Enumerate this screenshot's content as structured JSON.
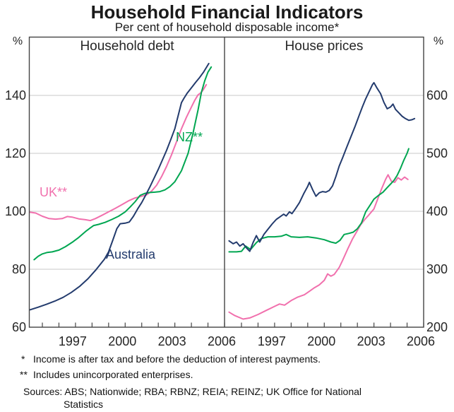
{
  "title": "Household Financial Indicators",
  "subtitle": "Per cent of household disposable income*",
  "colors": {
    "navy": "#233b6d",
    "pink": "#f170ad",
    "green": "#00a651",
    "grid": "#c9c9c9",
    "frame": "#444444"
  },
  "footnotes": {
    "fn1_marker": "*",
    "fn1_text": "Income is after tax and before the deduction of interest payments.",
    "fn2_marker": "**",
    "fn2_text": "Includes unincorporated enterprises.",
    "sources_line1": "Sources: ABS; Nationwide; RBA; RBNZ; REIA; REINZ; UK Office for National",
    "sources_line2": "Statistics"
  },
  "chart_data": [
    {
      "type": "line",
      "panel": "Household debt",
      "unit": "%",
      "axis_side": "left",
      "ylim": [
        60,
        160
      ],
      "y_ticks": [
        140,
        120,
        100,
        80,
        60
      ],
      "x_label_ticks": [
        1997,
        2000,
        2003,
        2006
      ],
      "x_minor_ticks": [
        1995,
        1996,
        1997,
        1998,
        1999,
        2000,
        2001,
        2002,
        2003,
        2004,
        2005,
        2006
      ],
      "grid": "horizontal",
      "series": [
        {
          "name": "UK**",
          "color_key": "pink",
          "points": [
            [
              1994.25,
              99.7
            ],
            [
              1994.6,
              99.4
            ],
            [
              1995.0,
              98.3
            ],
            [
              1995.4,
              97.5
            ],
            [
              1995.8,
              97.3
            ],
            [
              1996.2,
              97.5
            ],
            [
              1996.5,
              98.2
            ],
            [
              1996.8,
              98.0
            ],
            [
              1997.2,
              97.4
            ],
            [
              1997.6,
              97.1
            ],
            [
              1997.9,
              96.8
            ],
            [
              1998.2,
              97.5
            ],
            [
              1998.6,
              98.6
            ],
            [
              1999.0,
              99.8
            ],
            [
              1999.4,
              101.0
            ],
            [
              1999.8,
              102.3
            ],
            [
              2000.2,
              103.6
            ],
            [
              2000.6,
              104.6
            ],
            [
              2001.0,
              105.2
            ],
            [
              2001.3,
              105.7
            ],
            [
              2001.6,
              107.0
            ],
            [
              2001.9,
              109.0
            ],
            [
              2002.2,
              112.0
            ],
            [
              2002.5,
              115.5
            ],
            [
              2002.8,
              119.5
            ],
            [
              2003.1,
              124.0
            ],
            [
              2003.4,
              128.5
            ],
            [
              2003.7,
              132.5
            ],
            [
              2004.0,
              136.0
            ],
            [
              2004.2,
              138.3
            ],
            [
              2004.4,
              140.2
            ],
            [
              2004.55,
              140.8
            ],
            [
              2004.7,
              141.8
            ],
            [
              2004.9,
              143.7
            ]
          ]
        },
        {
          "name": "NZ**",
          "color_key": "green",
          "points": [
            [
              1994.5,
              83.3
            ],
            [
              1994.75,
              84.5
            ],
            [
              1995.0,
              85.3
            ],
            [
              1995.3,
              85.8
            ],
            [
              1995.6,
              86.0
            ],
            [
              1996.0,
              86.6
            ],
            [
              1996.4,
              87.8
            ],
            [
              1996.8,
              89.3
            ],
            [
              1997.2,
              91.0
            ],
            [
              1997.6,
              93.0
            ],
            [
              1997.9,
              94.3
            ],
            [
              1998.1,
              95.1
            ],
            [
              1998.4,
              95.5
            ],
            [
              1998.8,
              96.2
            ],
            [
              1999.2,
              97.2
            ],
            [
              1999.6,
              98.3
            ],
            [
              2000.0,
              99.8
            ],
            [
              2000.3,
              101.5
            ],
            [
              2000.6,
              103.3
            ],
            [
              2000.9,
              105.5
            ],
            [
              2001.2,
              106.2
            ],
            [
              2001.5,
              106.5
            ],
            [
              2001.8,
              106.6
            ],
            [
              2002.1,
              106.8
            ],
            [
              2002.4,
              107.4
            ],
            [
              2002.7,
              108.5
            ],
            [
              2003.0,
              110.2
            ],
            [
              2003.4,
              114.0
            ],
            [
              2003.8,
              120.0
            ],
            [
              2004.1,
              127.0
            ],
            [
              2004.4,
              135.0
            ],
            [
              2004.6,
              141.0
            ],
            [
              2004.8,
              145.0
            ],
            [
              2005.0,
              148.0
            ],
            [
              2005.2,
              149.8
            ]
          ]
        },
        {
          "name": "Australia",
          "color_key": "navy",
          "points": [
            [
              1994.25,
              66.0
            ],
            [
              1994.75,
              66.9
            ],
            [
              1995.25,
              67.9
            ],
            [
              1995.75,
              69.0
            ],
            [
              1996.25,
              70.3
            ],
            [
              1996.75,
              72.0
            ],
            [
              1997.25,
              74.1
            ],
            [
              1997.75,
              76.7
            ],
            [
              1998.25,
              79.9
            ],
            [
              1998.75,
              83.5
            ],
            [
              1999.0,
              86.0
            ],
            [
              1999.25,
              90.0
            ],
            [
              1999.5,
              94.0
            ],
            [
              1999.7,
              95.7
            ],
            [
              2000.0,
              95.9
            ],
            [
              2000.25,
              96.3
            ],
            [
              2000.5,
              98.3
            ],
            [
              2000.75,
              100.8
            ],
            [
              2001.0,
              103.0
            ],
            [
              2001.25,
              105.7
            ],
            [
              2001.5,
              108.5
            ],
            [
              2001.75,
              111.5
            ],
            [
              2002.0,
              114.5
            ],
            [
              2002.25,
              117.7
            ],
            [
              2002.5,
              121.0
            ],
            [
              2002.75,
              124.7
            ],
            [
              2003.0,
              128.5
            ],
            [
              2003.2,
              133.0
            ],
            [
              2003.4,
              137.5
            ],
            [
              2003.55,
              139.0
            ],
            [
              2003.75,
              140.8
            ],
            [
              2004.0,
              142.6
            ],
            [
              2004.25,
              144.5
            ],
            [
              2004.5,
              146.2
            ],
            [
              2004.75,
              148.2
            ],
            [
              2005.05,
              151.0
            ]
          ]
        }
      ]
    },
    {
      "type": "line",
      "panel": "House prices",
      "unit": "%",
      "axis_side": "right",
      "ylim": [
        200,
        700
      ],
      "y_ticks": [
        600,
        500,
        400,
        300,
        200
      ],
      "x_label_ticks": [
        1997,
        2000,
        2003,
        2006
      ],
      "x_minor_ticks": [
        1995,
        1996,
        1997,
        1998,
        1999,
        2000,
        2001,
        2002,
        2003,
        2004,
        2005,
        2006
      ],
      "grid": "horizontal",
      "series": [
        {
          "name": "UK**",
          "color_key": "pink",
          "points": [
            [
              1994.25,
              226
            ],
            [
              1994.6,
              220
            ],
            [
              1995.1,
              214
            ],
            [
              1995.5,
              216
            ],
            [
              1996.0,
              222
            ],
            [
              1996.5,
              229
            ],
            [
              1997.0,
              236
            ],
            [
              1997.3,
              240
            ],
            [
              1997.6,
              238
            ],
            [
              1998.0,
              246
            ],
            [
              1998.4,
              252
            ],
            [
              1998.8,
              256
            ],
            [
              1999.1,
              262
            ],
            [
              1999.4,
              268
            ],
            [
              1999.7,
              273
            ],
            [
              2000.0,
              281
            ],
            [
              2000.2,
              292
            ],
            [
              2000.4,
              288
            ],
            [
              2000.6,
              291
            ],
            [
              2000.9,
              303
            ],
            [
              2001.1,
              315
            ],
            [
              2001.4,
              334
            ],
            [
              2001.7,
              352
            ],
            [
              2002.0,
              367
            ],
            [
              2002.2,
              377
            ],
            [
              2002.45,
              386
            ],
            [
              2002.7,
              394
            ],
            [
              2003.0,
              404
            ],
            [
              2003.2,
              419
            ],
            [
              2003.45,
              438
            ],
            [
              2003.7,
              455
            ],
            [
              2003.85,
              463
            ],
            [
              2004.05,
              452
            ],
            [
              2004.25,
              450
            ],
            [
              2004.45,
              458
            ],
            [
              2004.65,
              454
            ],
            [
              2004.85,
              459
            ],
            [
              2005.05,
              455
            ]
          ]
        },
        {
          "name": "NZ**",
          "color_key": "green",
          "points": [
            [
              1994.25,
              330
            ],
            [
              1994.7,
              330
            ],
            [
              1995.0,
              331
            ],
            [
              1995.25,
              340
            ],
            [
              1995.55,
              334
            ],
            [
              1995.9,
              346
            ],
            [
              1996.2,
              353
            ],
            [
              1996.6,
              356
            ],
            [
              1997.0,
              356
            ],
            [
              1997.4,
              357
            ],
            [
              1997.7,
              360
            ],
            [
              1998.0,
              356
            ],
            [
              1998.5,
              355
            ],
            [
              1999.0,
              356
            ],
            [
              1999.5,
              354
            ],
            [
              2000.0,
              351
            ],
            [
              2000.4,
              347
            ],
            [
              2000.7,
              345
            ],
            [
              2000.95,
              350
            ],
            [
              2001.2,
              360
            ],
            [
              2001.5,
              362
            ],
            [
              2001.75,
              364
            ],
            [
              2002.0,
              370
            ],
            [
              2002.25,
              380
            ],
            [
              2002.5,
              399
            ],
            [
              2002.75,
              410
            ],
            [
              2003.0,
              421
            ],
            [
              2003.3,
              428
            ],
            [
              2003.55,
              433
            ],
            [
              2003.8,
              441
            ],
            [
              2004.0,
              447
            ],
            [
              2004.2,
              453
            ],
            [
              2004.4,
              462
            ],
            [
              2004.6,
              474
            ],
            [
              2004.8,
              488
            ],
            [
              2005.0,
              500
            ],
            [
              2005.1,
              508
            ]
          ]
        },
        {
          "name": "Australia",
          "color_key": "navy",
          "points": [
            [
              1994.25,
              349
            ],
            [
              1994.5,
              344
            ],
            [
              1994.7,
              347
            ],
            [
              1994.9,
              340
            ],
            [
              1995.1,
              344
            ],
            [
              1995.3,
              337
            ],
            [
              1995.5,
              331
            ],
            [
              1995.7,
              346
            ],
            [
              1995.9,
              358
            ],
            [
              1996.1,
              347
            ],
            [
              1996.35,
              360
            ],
            [
              1996.6,
              369
            ],
            [
              1996.85,
              378
            ],
            [
              1997.1,
              386
            ],
            [
              1997.35,
              391
            ],
            [
              1997.55,
              395
            ],
            [
              1997.7,
              392
            ],
            [
              1997.9,
              399
            ],
            [
              1998.05,
              396
            ],
            [
              1998.25,
              404
            ],
            [
              1998.5,
              415
            ],
            [
              1998.75,
              430
            ],
            [
              1999.0,
              443
            ],
            [
              1999.1,
              450
            ],
            [
              1999.3,
              437
            ],
            [
              1999.5,
              426
            ],
            [
              1999.7,
              432
            ],
            [
              1999.9,
              434
            ],
            [
              2000.1,
              433
            ],
            [
              2000.3,
              436
            ],
            [
              2000.5,
              444
            ],
            [
              2000.7,
              460
            ],
            [
              2000.9,
              478
            ],
            [
              2001.1,
              492
            ],
            [
              2001.35,
              510
            ],
            [
              2001.6,
              528
            ],
            [
              2001.85,
              546
            ],
            [
              2002.1,
              565
            ],
            [
              2002.3,
              580
            ],
            [
              2002.5,
              594
            ],
            [
              2002.7,
              606
            ],
            [
              2002.9,
              618
            ],
            [
              2003.0,
              622
            ],
            [
              2003.2,
              612
            ],
            [
              2003.4,
              603
            ],
            [
              2003.6,
              588
            ],
            [
              2003.8,
              577
            ],
            [
              2004.0,
              580
            ],
            [
              2004.15,
              585
            ],
            [
              2004.3,
              576
            ],
            [
              2004.5,
              570
            ],
            [
              2004.7,
              564
            ],
            [
              2004.9,
              560
            ],
            [
              2005.1,
              557
            ],
            [
              2005.3,
              558
            ],
            [
              2005.45,
              560
            ]
          ]
        }
      ]
    }
  ]
}
